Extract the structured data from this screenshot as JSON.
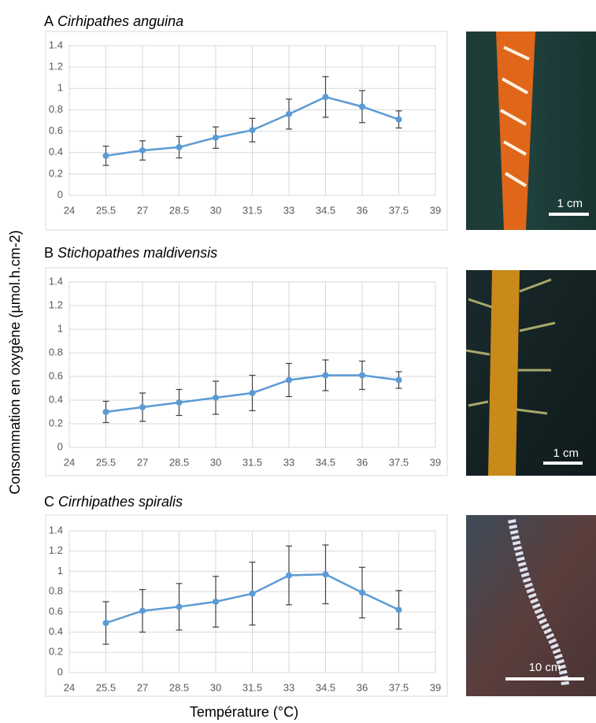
{
  "chart_data": [
    {
      "type": "line",
      "panel": "A",
      "title": "Cirhipathes anguina",
      "x": [
        25.5,
        27,
        28.5,
        30,
        31.5,
        33,
        34.5,
        36,
        37.5
      ],
      "values": [
        0.37,
        0.42,
        0.45,
        0.54,
        0.61,
        0.76,
        0.92,
        0.83,
        0.71
      ],
      "errors": [
        0.09,
        0.09,
        0.1,
        0.1,
        0.11,
        0.14,
        0.19,
        0.15,
        0.08
      ],
      "color": "#5b9bd5",
      "error_color": "#404040",
      "xlim": [
        24,
        39
      ],
      "xticks": [
        24,
        25.5,
        27,
        28.5,
        30,
        31.5,
        33,
        34.5,
        36,
        37.5,
        39
      ],
      "ylim": [
        0,
        1.4
      ],
      "yticks": [
        0,
        0.2,
        0.4,
        0.6,
        0.8,
        1,
        1.2,
        1.4
      ],
      "grid": true
    },
    {
      "type": "line",
      "panel": "B",
      "title": "Stichopathes maldivensis",
      "x": [
        25.5,
        27,
        28.5,
        30,
        31.5,
        33,
        34.5,
        36,
        37.5
      ],
      "values": [
        0.3,
        0.34,
        0.38,
        0.42,
        0.46,
        0.57,
        0.61,
        0.61,
        0.57
      ],
      "errors": [
        0.09,
        0.12,
        0.11,
        0.14,
        0.15,
        0.14,
        0.13,
        0.12,
        0.07
      ],
      "color": "#5b9bd5",
      "error_color": "#404040",
      "xlim": [
        24,
        39
      ],
      "xticks": [
        24,
        25.5,
        27,
        28.5,
        30,
        31.5,
        33,
        34.5,
        36,
        37.5,
        39
      ],
      "ylim": [
        0,
        1.4
      ],
      "yticks": [
        0,
        0.2,
        0.4,
        0.6,
        0.8,
        1,
        1.2,
        1.4
      ],
      "grid": true
    },
    {
      "type": "line",
      "panel": "C",
      "title": "Cirrhipathes spiralis",
      "x": [
        25.5,
        27,
        28.5,
        30,
        31.5,
        33,
        34.5,
        36,
        37.5
      ],
      "values": [
        0.49,
        0.61,
        0.65,
        0.7,
        0.78,
        0.96,
        0.97,
        0.79,
        0.62
      ],
      "errors": [
        0.21,
        0.21,
        0.23,
        0.25,
        0.31,
        0.29,
        0.29,
        0.25,
        0.19
      ],
      "color": "#5b9bd5",
      "error_color": "#404040",
      "xlim": [
        24,
        39
      ],
      "xticks": [
        24,
        25.5,
        27,
        28.5,
        30,
        31.5,
        33,
        34.5,
        36,
        37.5,
        39
      ],
      "ylim": [
        0,
        1.4
      ],
      "yticks": [
        0,
        0.2,
        0.4,
        0.6,
        0.8,
        1,
        1.2,
        1.4
      ],
      "grid": true
    }
  ],
  "y_label": "Consommation en oxygène (µmol.h.cm-2)",
  "x_label": "Température (°C)",
  "photos": [
    {
      "scale_label": "1 cm"
    },
    {
      "scale_label": "1 cm"
    },
    {
      "scale_label": "10 cm"
    }
  ]
}
